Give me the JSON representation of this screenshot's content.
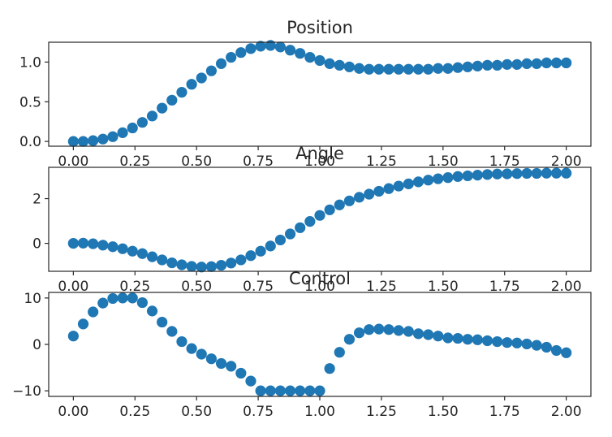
{
  "chart_data": [
    {
      "type": "scatter",
      "title": "Position",
      "xlim": [
        -0.1,
        2.1
      ],
      "ylim": [
        -0.06,
        1.25
      ],
      "xticks": [
        "0.00",
        "0.25",
        "0.50",
        "0.75",
        "1.00",
        "1.25",
        "1.50",
        "1.75",
        "2.00"
      ],
      "yticks": [
        "0.0",
        "0.5",
        "1.0"
      ],
      "ytick_values": [
        0,
        0.5,
        1.0
      ],
      "grid": false,
      "marker_color": "#1f77b4",
      "x": [
        0,
        0.04,
        0.08,
        0.12,
        0.16,
        0.2,
        0.24,
        0.28,
        0.32,
        0.36,
        0.4,
        0.44,
        0.48,
        0.52,
        0.56,
        0.6,
        0.64,
        0.68,
        0.72,
        0.76,
        0.8,
        0.84,
        0.88,
        0.92,
        0.96,
        1.0,
        1.04,
        1.08,
        1.12,
        1.16,
        1.2,
        1.24,
        1.28,
        1.32,
        1.36,
        1.4,
        1.44,
        1.48,
        1.52,
        1.56,
        1.6,
        1.64,
        1.68,
        1.72,
        1.76,
        1.8,
        1.84,
        1.88,
        1.92,
        1.96,
        2.0
      ],
      "y": [
        0.0,
        0.0,
        0.01,
        0.03,
        0.06,
        0.11,
        0.17,
        0.24,
        0.32,
        0.42,
        0.52,
        0.62,
        0.72,
        0.8,
        0.89,
        0.98,
        1.06,
        1.12,
        1.17,
        1.2,
        1.21,
        1.19,
        1.15,
        1.11,
        1.06,
        1.02,
        0.98,
        0.96,
        0.94,
        0.92,
        0.91,
        0.91,
        0.91,
        0.91,
        0.91,
        0.91,
        0.91,
        0.92,
        0.92,
        0.93,
        0.94,
        0.95,
        0.96,
        0.96,
        0.97,
        0.97,
        0.98,
        0.98,
        0.99,
        0.99,
        0.99
      ]
    },
    {
      "type": "scatter",
      "title": "Angle",
      "xlim": [
        -0.1,
        2.1
      ],
      "ylim": [
        -1.25,
        3.4
      ],
      "xticks": [
        "0.00",
        "0.25",
        "0.50",
        "0.75",
        "1.00",
        "1.25",
        "1.50",
        "1.75",
        "2.00"
      ],
      "yticks": [
        "0",
        "2"
      ],
      "ytick_values": [
        0,
        2
      ],
      "grid": false,
      "marker_color": "#1f77b4",
      "x": [
        0,
        0.04,
        0.08,
        0.12,
        0.16,
        0.2,
        0.24,
        0.28,
        0.32,
        0.36,
        0.4,
        0.44,
        0.48,
        0.52,
        0.56,
        0.6,
        0.64,
        0.68,
        0.72,
        0.76,
        0.8,
        0.84,
        0.88,
        0.92,
        0.96,
        1.0,
        1.04,
        1.08,
        1.12,
        1.16,
        1.2,
        1.24,
        1.28,
        1.32,
        1.36,
        1.4,
        1.44,
        1.48,
        1.52,
        1.56,
        1.6,
        1.64,
        1.68,
        1.72,
        1.76,
        1.8,
        1.84,
        1.88,
        1.92,
        1.96,
        2.0
      ],
      "y": [
        0.0,
        0.01,
        -0.02,
        -0.08,
        -0.15,
        -0.24,
        -0.35,
        -0.46,
        -0.6,
        -0.74,
        -0.87,
        -0.96,
        -1.03,
        -1.06,
        -1.04,
        -0.98,
        -0.88,
        -0.74,
        -0.55,
        -0.35,
        -0.12,
        0.15,
        0.42,
        0.7,
        0.98,
        1.25,
        1.5,
        1.72,
        1.9,
        2.06,
        2.2,
        2.33,
        2.45,
        2.56,
        2.66,
        2.75,
        2.83,
        2.89,
        2.94,
        2.99,
        3.02,
        3.05,
        3.08,
        3.1,
        3.11,
        3.12,
        3.13,
        3.13,
        3.14,
        3.14,
        3.14
      ]
    },
    {
      "type": "scatter",
      "title": "Control",
      "xlim": [
        -0.1,
        2.1
      ],
      "ylim": [
        -11.2,
        11.2
      ],
      "xticks": [
        "0.00",
        "0.25",
        "0.50",
        "0.75",
        "1.00",
        "1.25",
        "1.50",
        "1.75",
        "2.00"
      ],
      "yticks": [
        "10",
        "0",
        "−10"
      ],
      "ytick_values": [
        10,
        0,
        -10
      ],
      "grid": false,
      "marker_color": "#1f77b4",
      "x": [
        0,
        0.04,
        0.08,
        0.12,
        0.16,
        0.2,
        0.24,
        0.28,
        0.32,
        0.36,
        0.4,
        0.44,
        0.48,
        0.52,
        0.56,
        0.6,
        0.64,
        0.68,
        0.72,
        0.76,
        0.8,
        0.84,
        0.88,
        0.92,
        0.96,
        1.0,
        1.04,
        1.08,
        1.12,
        1.16,
        1.2,
        1.24,
        1.28,
        1.32,
        1.36,
        1.4,
        1.44,
        1.48,
        1.52,
        1.56,
        1.6,
        1.64,
        1.68,
        1.72,
        1.76,
        1.8,
        1.84,
        1.88,
        1.92,
        1.96,
        2.0
      ],
      "y": [
        1.8,
        4.4,
        7.0,
        8.9,
        9.9,
        10.0,
        10.0,
        9.0,
        7.2,
        4.8,
        2.8,
        0.6,
        -0.9,
        -2.1,
        -3.1,
        -4.1,
        -4.7,
        -6.2,
        -7.9,
        -10.0,
        -10.0,
        -10.0,
        -10.0,
        -10.0,
        -10.0,
        -10.0,
        -5.2,
        -1.7,
        1.1,
        2.5,
        3.2,
        3.3,
        3.2,
        3.0,
        2.8,
        2.3,
        2.1,
        1.8,
        1.4,
        1.3,
        1.1,
        1.0,
        0.8,
        0.6,
        0.4,
        0.3,
        0.1,
        -0.2,
        -0.6,
        -1.3,
        -1.8
      ]
    }
  ]
}
